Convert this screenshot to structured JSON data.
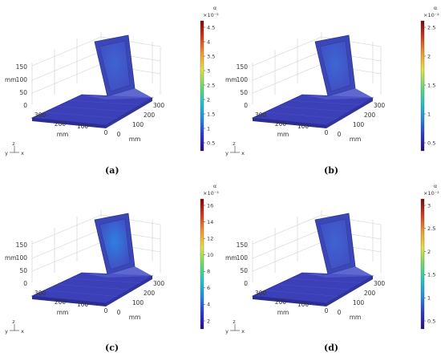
{
  "panels": [
    {
      "id": "a",
      "caption": "(a)",
      "colorbar": {
        "unit": "α",
        "exponent": "×10⁻²",
        "ticks": [
          "4.5",
          "4",
          "3.5",
          "3",
          "2.5",
          "2",
          "1.5",
          "1",
          "0.5"
        ]
      }
    },
    {
      "id": "b",
      "caption": "(b)",
      "colorbar": {
        "unit": "α",
        "exponent": "×10⁻²",
        "ticks": [
          "2.5",
          "2",
          "1.5",
          "1",
          "0.5"
        ]
      }
    },
    {
      "id": "c",
      "caption": "(c)",
      "colorbar": {
        "unit": "α",
        "exponent": "×10⁻³",
        "ticks": [
          "16",
          "14",
          "12",
          "10",
          "8",
          "6",
          "4",
          "2"
        ]
      }
    },
    {
      "id": "d",
      "caption": "(d)",
      "colorbar": {
        "unit": "α",
        "exponent": "×10⁻²",
        "ticks": [
          "3",
          "2.5",
          "2",
          "1.5",
          "1",
          "0.5"
        ]
      }
    }
  ],
  "axes": {
    "z_ticks": [
      "150",
      "100",
      "50",
      "0"
    ],
    "z_label": "mm",
    "x_ticks": [
      "300",
      "200",
      "100",
      "0"
    ],
    "x_label": "mm",
    "y_ticks": [
      "300",
      "200",
      "100",
      "0"
    ],
    "y_label": "mm",
    "triad": {
      "z": "z",
      "y": "y",
      "x": "x"
    }
  },
  "colors": {
    "plate": "#3b40b8",
    "plate_edge": "#2a2e93",
    "wall": "#4150c4",
    "colormap": [
      "#2b0a8a",
      "#2a3ad0",
      "#1e8ee6",
      "#22c7c2",
      "#6ddc6a",
      "#e8e23a",
      "#f29a2a",
      "#d8381e",
      "#7a0a0a"
    ]
  }
}
